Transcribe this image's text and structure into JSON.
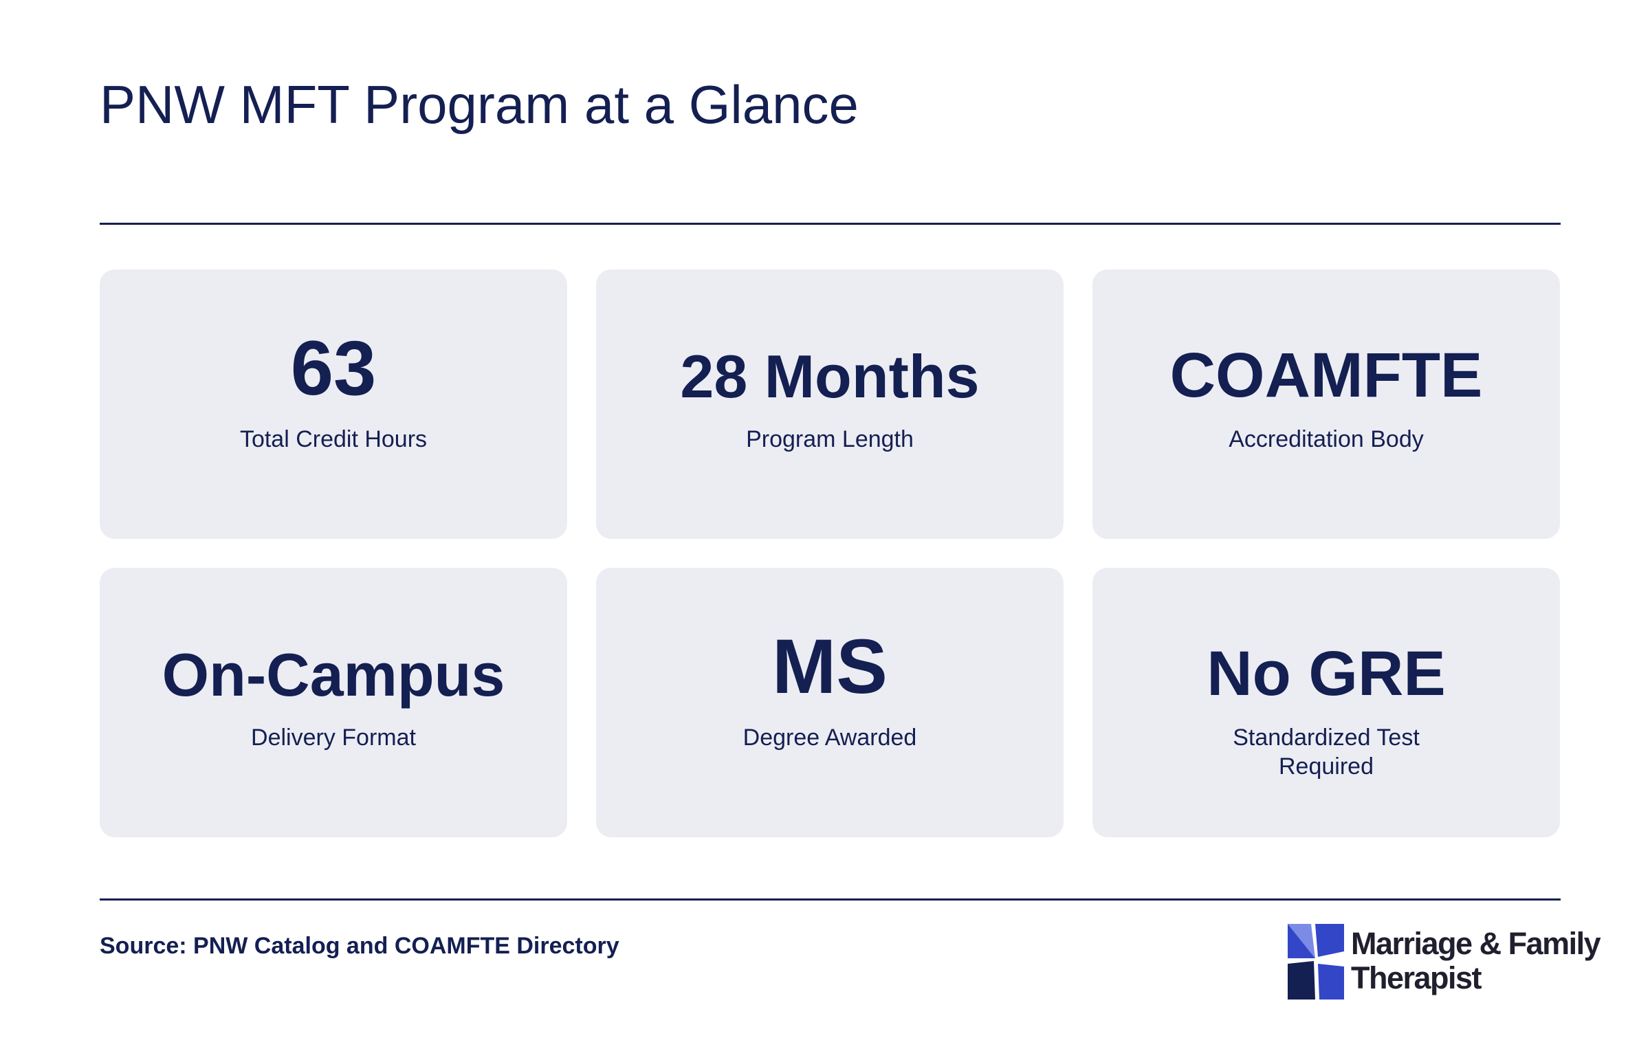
{
  "header": {
    "title": "PNW MFT Program at a Glance"
  },
  "stats": [
    {
      "value": "63",
      "label": "Total Credit Hours"
    },
    {
      "value": "28 Months",
      "label": "Program Length"
    },
    {
      "value": "COAMFTE",
      "label": "Accreditation Body"
    },
    {
      "value": "On-Campus",
      "label": "Delivery Format"
    },
    {
      "value": "MS",
      "label": "Degree Awarded"
    },
    {
      "value": "No GRE",
      "label": "Standardized Test Required"
    }
  ],
  "footer": {
    "source": "Source: PNW Catalog and COAMFTE Directory",
    "logo": {
      "line1": "Marriage & Family",
      "line2": "Therapist",
      "icon": "pinwheel-logo-icon"
    }
  },
  "colors": {
    "primary": "#141f52",
    "card_background": "#ecedf3",
    "logo_light": "#7b8be6",
    "logo_mid": "#3346c8",
    "logo_dark": "#141f52"
  }
}
